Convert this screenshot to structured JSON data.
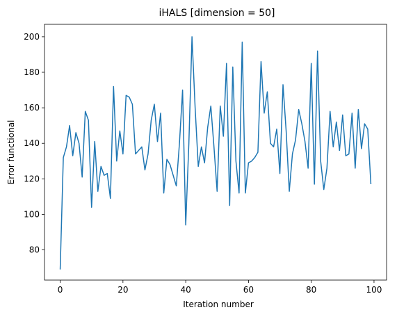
{
  "chart_data": {
    "type": "line",
    "title": "iHALS [dimension = 50]",
    "xlabel": "Iteration number",
    "ylabel": "Error functional",
    "xlim": [
      -5,
      104
    ],
    "ylim": [
      63,
      207
    ],
    "xticks": [
      0,
      20,
      40,
      60,
      80,
      100
    ],
    "yticks": [
      80,
      100,
      120,
      140,
      160,
      180,
      200
    ],
    "grid": false,
    "series": [
      {
        "name": "error",
        "color": "#1f77b4",
        "x": [
          0,
          1,
          2,
          3,
          4,
          5,
          6,
          7,
          8,
          9,
          10,
          11,
          12,
          13,
          14,
          15,
          16,
          17,
          18,
          19,
          20,
          21,
          22,
          23,
          24,
          25,
          26,
          27,
          28,
          29,
          30,
          31,
          32,
          33,
          34,
          35,
          36,
          37,
          38,
          39,
          40,
          41,
          42,
          43,
          44,
          45,
          46,
          47,
          48,
          49,
          50,
          51,
          52,
          53,
          54,
          55,
          56,
          57,
          58,
          59,
          60,
          61,
          62,
          63,
          64,
          65,
          66,
          67,
          68,
          69,
          70,
          71,
          72,
          73,
          74,
          75,
          76,
          77,
          78,
          79,
          80,
          81,
          82,
          83,
          84,
          85,
          86,
          87,
          88,
          89,
          90,
          91,
          92,
          93,
          94,
          95,
          96,
          97,
          98,
          99
        ],
        "values": [
          69,
          132,
          138,
          150,
          133,
          146,
          140,
          121,
          158,
          153,
          104,
          141,
          113,
          127,
          122,
          123,
          109,
          172,
          130,
          147,
          134,
          167,
          166,
          162,
          134,
          136,
          138,
          125,
          134,
          153,
          162,
          141,
          157,
          112,
          131,
          128,
          122,
          116,
          140,
          170,
          94,
          140,
          200,
          160,
          127,
          138,
          129,
          149,
          161,
          138,
          113,
          161,
          144,
          185,
          105,
          183,
          130,
          112,
          197,
          112,
          129,
          130,
          132,
          135,
          186,
          157,
          169,
          140,
          138,
          148,
          123,
          173,
          147,
          113,
          134,
          142,
          159,
          151,
          141,
          126,
          185,
          117,
          192,
          130,
          114,
          126,
          158,
          138,
          152,
          136,
          156,
          133,
          134,
          157,
          126,
          159,
          137,
          151,
          148,
          117
        ]
      }
    ]
  }
}
